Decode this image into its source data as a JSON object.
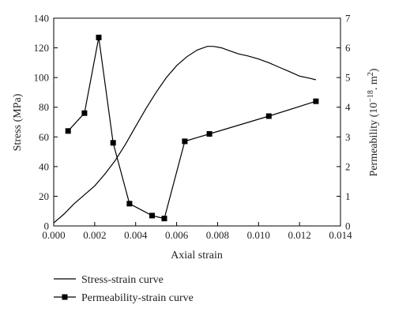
{
  "chart_data": {
    "type": "line",
    "title": "",
    "xlabel": "Axial strain",
    "ylabel_left": "Stress (MPa)",
    "ylabel_right_parts": {
      "main": "Permeability (10",
      "exp": "−18",
      "mid": ". m",
      "exp2": "2",
      "end": ")"
    },
    "xlim": [
      0,
      0.014
    ],
    "ylim_left": [
      0,
      140
    ],
    "ylim_right": [
      0,
      7
    ],
    "x_ticks": [
      "0.000",
      "0.002",
      "0.004",
      "0.006",
      "0.008",
      "0.010",
      "0.012",
      "0.014"
    ],
    "y_left_ticks": [
      "0",
      "20",
      "40",
      "60",
      "80",
      "100",
      "120",
      "140"
    ],
    "y_right_ticks": [
      "0",
      "1",
      "2",
      "3",
      "4",
      "5",
      "6",
      "7"
    ],
    "grid": false,
    "legend_position": "bottom",
    "series": [
      {
        "name": "Stress-strain curve",
        "axis": "left",
        "marker": "none",
        "color": "#000000",
        "x": [
          0,
          0.0005,
          0.001,
          0.0015,
          0.002,
          0.0025,
          0.003,
          0.0035,
          0.004,
          0.0045,
          0.005,
          0.0055,
          0.006,
          0.0065,
          0.007,
          0.0075,
          0.0078,
          0.0082,
          0.0085,
          0.009,
          0.0095,
          0.01,
          0.0105,
          0.011,
          0.0115,
          0.012,
          0.0125,
          0.0128
        ],
        "y": [
          2,
          8,
          15,
          21,
          27,
          35,
          44,
          55,
          67,
          79,
          90,
          100,
          108,
          114,
          118.5,
          121,
          121,
          120,
          118.5,
          116,
          114.5,
          112.5,
          110,
          107,
          104,
          101,
          99.5,
          98.5
        ]
      },
      {
        "name": "Permeability-strain curve",
        "axis": "right",
        "marker": "square",
        "color": "#000000",
        "x": [
          0.0007,
          0.0015,
          0.0022,
          0.0029,
          0.0037,
          0.0048,
          0.0054,
          0.0064,
          0.0076,
          0.0105,
          0.0128
        ],
        "y": [
          3.2,
          3.8,
          6.35,
          2.8,
          0.75,
          0.35,
          0.25,
          2.85,
          3.1,
          3.7,
          4.2
        ]
      }
    ]
  }
}
